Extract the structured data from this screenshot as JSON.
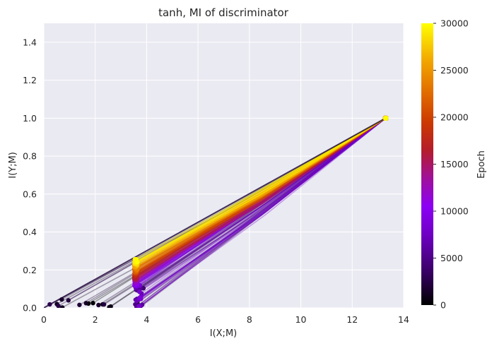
{
  "chart_data": {
    "type": "scatter",
    "title": "tanh, MI of discriminator",
    "xlabel": "I(X;M)",
    "ylabel": "I(Y;M)",
    "xlim": [
      0,
      14
    ],
    "ylim": [
      0,
      1.5
    ],
    "xticks": [
      "0",
      "2",
      "4",
      "6",
      "8",
      "10",
      "12",
      "14"
    ],
    "yticks": [
      "0.0",
      "0.2",
      "0.4",
      "0.6",
      "0.8",
      "1.0",
      "1.2",
      "1.4"
    ],
    "grid": true,
    "background": "#eaeaf2",
    "colormap": "gnuplot",
    "colorbar": {
      "label": "Epoch",
      "range": [
        0,
        30000
      ],
      "ticks": [
        "0",
        "5000",
        "10000",
        "15000",
        "20000",
        "25000",
        "30000"
      ]
    },
    "series_description": "Each epoch draws a line from input-layer MI (about 13.3, 1.0) through hidden layers to the output layer near the origin; points colored by epoch.",
    "anchor_point": {
      "x": 13.3,
      "y": 1.0
    },
    "endpoint_clusters": [
      {
        "epoch_start": 0,
        "epoch_end": 3000,
        "x_range": [
          0,
          3.9
        ],
        "y_range": [
          0,
          0.05
        ]
      },
      {
        "epoch_start": 3000,
        "epoch_end": 9000,
        "x": 3.75,
        "y_range": [
          0.0,
          0.12
        ]
      },
      {
        "epoch_start": 9000,
        "epoch_end": 30000,
        "x": 3.6,
        "y_range": [
          0.12,
          0.25
        ]
      }
    ]
  }
}
